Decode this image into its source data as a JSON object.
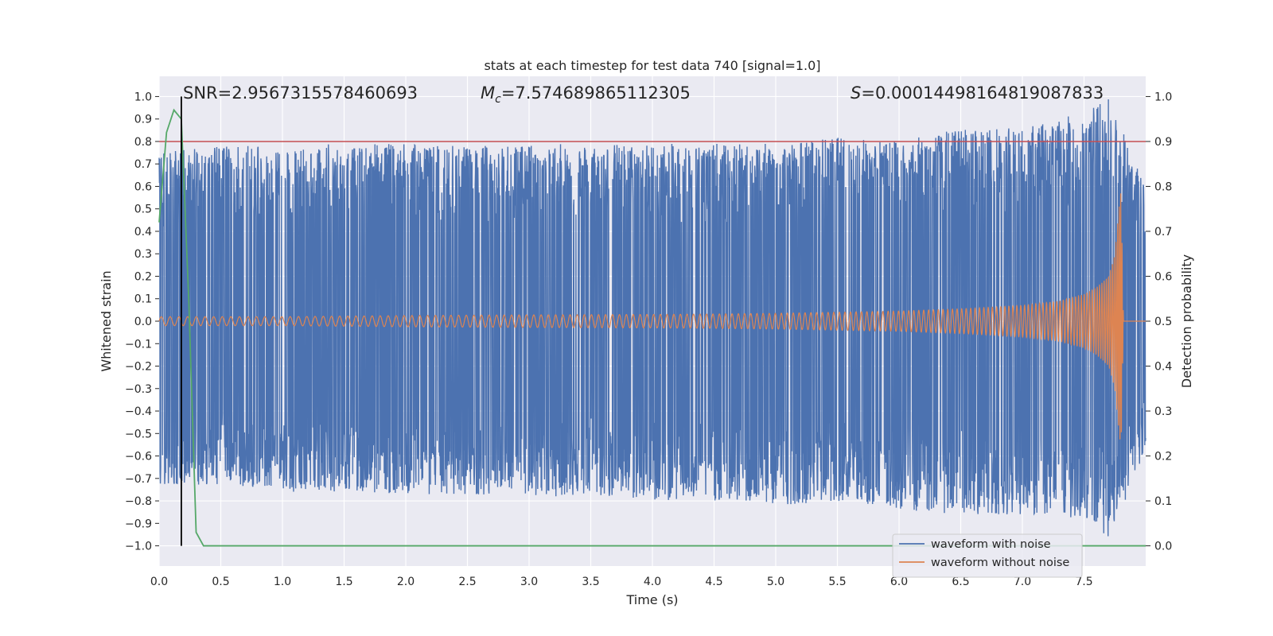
{
  "chart_data": {
    "type": "line",
    "title": "stats at each timestep for test data 740 [signal=1.0]",
    "xlabel": "Time (s)",
    "ylabel": "Whitened strain",
    "ylabel_right": "Detection probability",
    "xlim": [
      0.0,
      8.0
    ],
    "ylim": [
      -1.09,
      1.09
    ],
    "ylim_right": [
      -0.045,
      1.045
    ],
    "x_ticks": [
      "0.0",
      "0.5",
      "1.0",
      "1.5",
      "2.0",
      "2.5",
      "3.0",
      "3.5",
      "4.0",
      "4.5",
      "5.0",
      "5.5",
      "6.0",
      "6.5",
      "7.0",
      "7.5"
    ],
    "y_ticks": [
      "1.0",
      "0.9",
      "0.8",
      "0.7",
      "0.6",
      "0.5",
      "0.4",
      "0.3",
      "0.2",
      "0.1",
      "0.0",
      "−0.1",
      "−0.2",
      "−0.3",
      "−0.4",
      "−0.5",
      "−0.6",
      "−0.7",
      "−0.8",
      "−0.9",
      "−1.0"
    ],
    "y_ticks_right": [
      "1.0",
      "0.9",
      "0.8",
      "0.7",
      "0.6",
      "0.5",
      "0.4",
      "0.3",
      "0.2",
      "0.1",
      "0.0"
    ],
    "annotations": {
      "snr": "SNR=2.9567315578460693",
      "mc_symbol": "M",
      "mc_subscript": "c",
      "mc_value": "=7.574689865112305",
      "s_symbol": "S",
      "s_value": "=0.00014498164819087833"
    },
    "threshold": 0.9,
    "marker_time": 0.18,
    "legend": {
      "placement": "bottom-right",
      "entries": [
        "waveform with noise",
        "waveform without noise"
      ]
    },
    "series": [
      {
        "name": "waveform with noise",
        "color": "#4c72b0",
        "envelope": {
          "x": [
            0.0,
            0.5,
            1.0,
            1.5,
            2.0,
            2.5,
            3.0,
            3.5,
            4.0,
            4.5,
            5.0,
            5.5,
            6.0,
            6.5,
            7.0,
            7.5,
            7.7,
            8.0
          ],
          "upper": [
            0.75,
            0.78,
            0.78,
            0.79,
            0.79,
            0.78,
            0.79,
            0.79,
            0.79,
            0.79,
            0.79,
            0.82,
            0.8,
            0.86,
            0.86,
            0.93,
            1.0,
            0.6
          ],
          "lower": [
            -0.74,
            -0.73,
            -0.76,
            -0.76,
            -0.77,
            -0.77,
            -0.78,
            -0.78,
            -0.8,
            -0.8,
            -0.82,
            -0.8,
            -0.84,
            -0.86,
            -0.86,
            -0.88,
            -0.96,
            -0.6
          ]
        }
      },
      {
        "name": "waveform without noise",
        "color": "#dd8452",
        "chirp": {
          "x": [
            0.0,
            1.0,
            2.0,
            3.0,
            4.0,
            4.5,
            5.0,
            5.5,
            6.0,
            6.5,
            7.0,
            7.3,
            7.5,
            7.6,
            7.7,
            7.75,
            7.8,
            7.82,
            8.0
          ],
          "amplitude": [
            0.02,
            0.02,
            0.025,
            0.028,
            0.03,
            0.032,
            0.035,
            0.04,
            0.045,
            0.055,
            0.07,
            0.09,
            0.12,
            0.15,
            0.2,
            0.3,
            0.6,
            0.0,
            0.0
          ]
        }
      },
      {
        "name": "Detection probability",
        "color": "#55a868",
        "x": [
          0.0,
          0.06,
          0.12,
          0.18,
          0.24,
          0.3,
          0.36,
          8.0
        ],
        "y": [
          0.72,
          0.92,
          0.97,
          0.95,
          0.55,
          0.03,
          0.0,
          0.0
        ]
      }
    ],
    "colors": {
      "plot_background": "#eaeaf2",
      "grid": "#ffffff",
      "threshold_line": "#c44e52",
      "marker_line": "#000000"
    }
  }
}
